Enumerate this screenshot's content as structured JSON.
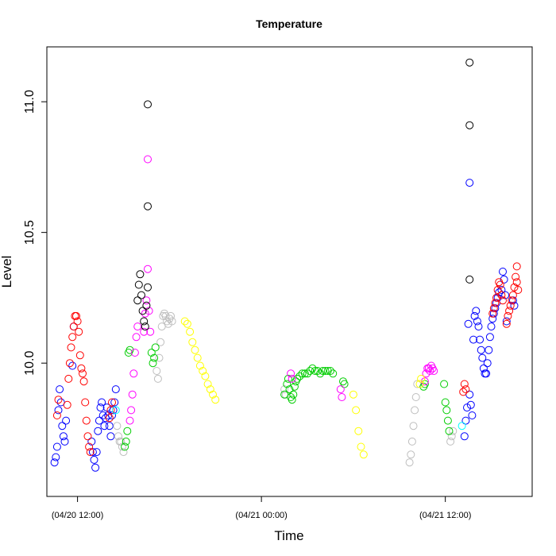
{
  "chart_data": {
    "type": "scatter",
    "title": "Temperature",
    "xlabel": "Time",
    "ylabel": "Level",
    "xlim": [
      "04/20 10:00",
      "04/21 17:40"
    ],
    "ylim": [
      9.49,
      11.21
    ],
    "x_ticks": [
      {
        "value": "04/20 12:00",
        "label": "(04/20 12:00)"
      },
      {
        "value": "04/21 00:00",
        "label": "(04/21 00:00)"
      },
      {
        "value": "04/21 12:00",
        "label": "(04/21 12:00)"
      }
    ],
    "y_ticks": [
      {
        "value": 10.0,
        "label": "10.0"
      },
      {
        "value": 10.5,
        "label": "10.5"
      },
      {
        "value": 11.0,
        "label": "11.0"
      }
    ],
    "grid": false,
    "legend": "none",
    "series": [
      {
        "color": "#0000FF",
        "points": [
          [
            "04/20 10:30",
            9.62
          ],
          [
            "04/20 10:35",
            9.64
          ],
          [
            "04/20 10:40",
            9.68
          ],
          [
            "04/20 10:45",
            9.82
          ],
          [
            "04/20 10:50",
            9.9
          ],
          [
            "04/20 10:55",
            9.85
          ],
          [
            "04/20 11:00",
            9.76
          ],
          [
            "04/20 11:05",
            9.72
          ],
          [
            "04/20 11:10",
            9.7
          ],
          [
            "04/20 11:15",
            9.78
          ],
          [
            "04/20 11:40",
            9.99
          ],
          [
            "04/20 11:45",
            10.14
          ],
          [
            "04/20 12:55",
            9.7
          ],
          [
            "04/20 13:00",
            9.66
          ],
          [
            "04/20 13:05",
            9.63
          ],
          [
            "04/20 13:10",
            9.6
          ],
          [
            "04/20 13:15",
            9.66
          ],
          [
            "04/20 13:20",
            9.74
          ],
          [
            "04/20 13:25",
            9.78
          ],
          [
            "04/20 13:30",
            9.83
          ],
          [
            "04/20 13:35",
            9.85
          ],
          [
            "04/20 13:40",
            9.8
          ],
          [
            "04/20 13:45",
            9.76
          ],
          [
            "04/20 13:50",
            9.79
          ],
          [
            "04/20 13:55",
            9.83
          ],
          [
            "04/20 14:00",
            9.8
          ],
          [
            "04/20 14:05",
            9.76
          ],
          [
            "04/20 14:10",
            9.72
          ],
          [
            "04/20 14:15",
            9.8
          ],
          [
            "04/20 14:20",
            9.82
          ],
          [
            "04/20 14:25",
            9.85
          ],
          [
            "04/20 14:30",
            9.9
          ],
          [
            "04/21 13:15",
            9.72
          ],
          [
            "04/21 13:20",
            9.78
          ],
          [
            "04/21 13:25",
            9.83
          ],
          [
            "04/21 13:30",
            10.15
          ],
          [
            "04/21 13:35",
            10.69
          ],
          [
            "04/21 13:35",
            9.88
          ],
          [
            "04/21 13:40",
            9.84
          ],
          [
            "04/21 13:45",
            9.8
          ],
          [
            "04/21 13:50",
            10.09
          ],
          [
            "04/21 13:55",
            10.18
          ],
          [
            "04/21 14:00",
            10.2
          ],
          [
            "04/21 14:05",
            10.16
          ],
          [
            "04/21 14:10",
            10.14
          ],
          [
            "04/21 14:15",
            10.09
          ],
          [
            "04/21 14:20",
            10.05
          ],
          [
            "04/21 14:25",
            10.02
          ],
          [
            "04/21 14:30",
            9.98
          ],
          [
            "04/21 14:35",
            9.96
          ],
          [
            "04/21 14:40",
            9.96
          ],
          [
            "04/21 14:45",
            10.0
          ],
          [
            "04/21 14:50",
            10.05
          ],
          [
            "04/21 14:55",
            10.1
          ],
          [
            "04/21 15:00",
            10.14
          ],
          [
            "04/21 15:05",
            10.17
          ],
          [
            "04/21 15:10",
            10.19
          ],
          [
            "04/21 15:15",
            10.21
          ],
          [
            "04/21 15:20",
            10.23
          ],
          [
            "04/21 15:25",
            10.25
          ],
          [
            "04/21 15:30",
            10.27
          ],
          [
            "04/21 15:40",
            10.28
          ],
          [
            "04/21 15:45",
            10.35
          ],
          [
            "04/21 15:50",
            10.32
          ],
          [
            "04/21 15:55",
            10.26
          ],
          [
            "04/21 16:00",
            10.16
          ],
          [
            "04/21 16:25",
            10.24
          ],
          [
            "04/21 16:30",
            10.22
          ]
        ]
      },
      {
        "color": "#FF0000",
        "points": [
          [
            "04/20 10:40",
            9.8
          ],
          [
            "04/20 10:45",
            9.86
          ],
          [
            "04/20 11:20",
            9.84
          ],
          [
            "04/20 11:25",
            9.94
          ],
          [
            "04/20 11:30",
            10.0
          ],
          [
            "04/20 11:35",
            10.06
          ],
          [
            "04/20 11:40",
            10.1
          ],
          [
            "04/20 11:45",
            10.14
          ],
          [
            "04/20 11:50",
            10.18
          ],
          [
            "04/20 11:55",
            10.18
          ],
          [
            "04/20 12:00",
            10.16
          ],
          [
            "04/20 12:05",
            10.12
          ],
          [
            "04/20 12:10",
            10.03
          ],
          [
            "04/20 12:15",
            9.98
          ],
          [
            "04/20 12:20",
            9.96
          ],
          [
            "04/20 12:25",
            9.93
          ],
          [
            "04/20 12:30",
            9.85
          ],
          [
            "04/20 12:35",
            9.78
          ],
          [
            "04/20 12:40",
            9.72
          ],
          [
            "04/20 12:45",
            9.68
          ],
          [
            "04/20 12:50",
            9.66
          ],
          [
            "04/20 14:05",
            9.79
          ],
          [
            "04/20 14:10",
            9.82
          ],
          [
            "04/20 14:15",
            9.85
          ],
          [
            "04/21 13:10",
            9.89
          ],
          [
            "04/21 13:15",
            9.92
          ],
          [
            "04/21 13:20",
            9.9
          ],
          [
            "04/21 15:05",
            10.19
          ],
          [
            "04/21 15:10",
            10.21
          ],
          [
            "04/21 15:15",
            10.23
          ],
          [
            "04/21 15:20",
            10.25
          ],
          [
            "04/21 15:25",
            10.28
          ],
          [
            "04/21 15:30",
            10.31
          ],
          [
            "04/21 15:35",
            10.3
          ],
          [
            "04/21 15:40",
            10.26
          ],
          [
            "04/21 15:45",
            10.24
          ],
          [
            "04/21 16:00",
            10.15
          ],
          [
            "04/21 16:05",
            10.18
          ],
          [
            "04/21 16:10",
            10.2
          ],
          [
            "04/21 16:15",
            10.22
          ],
          [
            "04/21 16:20",
            10.24
          ],
          [
            "04/21 16:25",
            10.26
          ],
          [
            "04/21 16:30",
            10.29
          ],
          [
            "04/21 16:35",
            10.33
          ],
          [
            "04/21 16:40",
            10.37
          ],
          [
            "04/21 16:40",
            10.31
          ],
          [
            "04/21 16:45",
            10.28
          ]
        ]
      },
      {
        "color": "#BEBEBE",
        "points": [
          [
            "04/20 14:35",
            9.76
          ],
          [
            "04/20 14:40",
            9.72
          ],
          [
            "04/20 14:45",
            9.7
          ],
          [
            "04/20 14:50",
            9.7
          ],
          [
            "04/20 14:55",
            9.68
          ],
          [
            "04/20 15:00",
            9.66
          ],
          [
            "04/20 17:10",
            9.97
          ],
          [
            "04/20 17:15",
            9.94
          ],
          [
            "04/20 17:20",
            10.02
          ],
          [
            "04/20 17:25",
            10.08
          ],
          [
            "04/20 17:30",
            10.14
          ],
          [
            "04/20 17:35",
            10.18
          ],
          [
            "04/20 17:40",
            10.19
          ],
          [
            "04/20 17:45",
            10.18
          ],
          [
            "04/20 17:50",
            10.16
          ],
          [
            "04/20 17:55",
            10.15
          ],
          [
            "04/20 18:00",
            10.17
          ],
          [
            "04/20 18:05",
            10.18
          ],
          [
            "04/20 18:10",
            10.16
          ],
          [
            "04/21 01:30",
            9.9
          ],
          [
            "04/21 01:35",
            9.88
          ],
          [
            "04/21 09:40",
            9.62
          ],
          [
            "04/21 09:45",
            9.65
          ],
          [
            "04/21 09:50",
            9.7
          ],
          [
            "04/21 09:55",
            9.76
          ],
          [
            "04/21 10:00",
            9.82
          ],
          [
            "04/21 10:05",
            9.87
          ],
          [
            "04/21 10:10",
            9.92
          ],
          [
            "04/21 12:20",
            9.7
          ],
          [
            "04/21 12:25",
            9.72
          ],
          [
            "04/21 12:30",
            9.74
          ]
        ]
      },
      {
        "color": "#00CD00",
        "points": [
          [
            "04/20 15:05",
            9.68
          ],
          [
            "04/20 15:10",
            9.7
          ],
          [
            "04/20 15:15",
            9.74
          ],
          [
            "04/20 15:20",
            10.04
          ],
          [
            "04/20 15:25",
            10.05
          ],
          [
            "04/20 16:50",
            10.04
          ],
          [
            "04/20 16:55",
            10.0
          ],
          [
            "04/20 17:00",
            10.02
          ],
          [
            "04/20 17:05",
            10.06
          ],
          [
            "04/21 01:30",
            9.88
          ],
          [
            "04/21 01:40",
            9.92
          ],
          [
            "04/21 01:45",
            9.94
          ],
          [
            "04/21 01:50",
            9.9
          ],
          [
            "04/21 01:55",
            9.87
          ],
          [
            "04/21 02:00",
            9.86
          ],
          [
            "04/21 02:05",
            9.88
          ],
          [
            "04/21 02:10",
            9.91
          ],
          [
            "04/21 02:15",
            9.93
          ],
          [
            "04/21 02:20",
            9.94
          ],
          [
            "04/21 02:30",
            9.95
          ],
          [
            "04/21 02:40",
            9.96
          ],
          [
            "04/21 02:50",
            9.96
          ],
          [
            "04/21 03:00",
            9.96
          ],
          [
            "04/21 03:10",
            9.97
          ],
          [
            "04/21 03:20",
            9.98
          ],
          [
            "04/21 03:30",
            9.97
          ],
          [
            "04/21 03:40",
            9.97
          ],
          [
            "04/21 03:50",
            9.96
          ],
          [
            "04/21 04:00",
            9.97
          ],
          [
            "04/21 04:10",
            9.97
          ],
          [
            "04/21 04:20",
            9.97
          ],
          [
            "04/21 04:30",
            9.97
          ],
          [
            "04/21 04:40",
            9.96
          ],
          [
            "04/21 05:20",
            9.93
          ],
          [
            "04/21 05:25",
            9.92
          ],
          [
            "04/21 10:35",
            9.91
          ],
          [
            "04/21 10:40",
            9.92
          ],
          [
            "04/21 11:55",
            9.92
          ],
          [
            "04/21 12:00",
            9.85
          ],
          [
            "04/21 12:05",
            9.82
          ],
          [
            "04/21 12:10",
            9.78
          ],
          [
            "04/21 12:15",
            9.74
          ]
        ]
      },
      {
        "color": "#FF00FF",
        "points": [
          [
            "04/20 15:25",
            9.78
          ],
          [
            "04/20 15:30",
            9.82
          ],
          [
            "04/20 15:35",
            9.88
          ],
          [
            "04/20 15:40",
            9.96
          ],
          [
            "04/20 15:45",
            10.04
          ],
          [
            "04/20 15:50",
            10.1
          ],
          [
            "04/20 15:55",
            10.14
          ],
          [
            "04/20 16:20",
            10.12
          ],
          [
            "04/20 16:25",
            10.19
          ],
          [
            "04/20 16:30",
            10.24
          ],
          [
            "04/20 16:35",
            10.78
          ],
          [
            "04/20 16:35",
            10.36
          ],
          [
            "04/20 16:40",
            10.2
          ],
          [
            "04/20 16:45",
            10.12
          ],
          [
            "04/21 01:55",
            9.96
          ],
          [
            "04/21 02:00",
            9.94
          ],
          [
            "04/21 05:10",
            9.9
          ],
          [
            "04/21 05:15",
            9.87
          ],
          [
            "04/21 10:40",
            9.93
          ],
          [
            "04/21 10:45",
            9.96
          ],
          [
            "04/21 10:50",
            9.98
          ],
          [
            "04/21 10:55",
            9.98
          ],
          [
            "04/21 11:00",
            9.97
          ],
          [
            "04/21 11:05",
            9.99
          ],
          [
            "04/21 11:10",
            9.98
          ],
          [
            "04/21 11:15",
            9.97
          ]
        ]
      },
      {
        "color": "#000000",
        "points": [
          [
            "04/20 15:55",
            10.24
          ],
          [
            "04/20 16:00",
            10.3
          ],
          [
            "04/20 16:05",
            10.34
          ],
          [
            "04/20 16:10",
            10.26
          ],
          [
            "04/20 16:15",
            10.2
          ],
          [
            "04/20 16:20",
            10.16
          ],
          [
            "04/20 16:25",
            10.14
          ],
          [
            "04/20 16:30",
            10.22
          ],
          [
            "04/20 16:35",
            10.99
          ],
          [
            "04/20 16:35",
            10.6
          ],
          [
            "04/20 16:35",
            10.29
          ],
          [
            "04/21 13:35",
            11.15
          ],
          [
            "04/21 13:35",
            10.91
          ],
          [
            "04/21 13:35",
            10.32
          ]
        ]
      },
      {
        "color": "#FFFF00",
        "points": [
          [
            "04/20 19:00",
            10.16
          ],
          [
            "04/20 19:10",
            10.15
          ],
          [
            "04/20 19:20",
            10.12
          ],
          [
            "04/20 19:30",
            10.08
          ],
          [
            "04/20 19:40",
            10.05
          ],
          [
            "04/20 19:50",
            10.02
          ],
          [
            "04/20 20:00",
            9.99
          ],
          [
            "04/20 20:10",
            9.97
          ],
          [
            "04/20 20:20",
            9.95
          ],
          [
            "04/20 20:30",
            9.92
          ],
          [
            "04/20 20:40",
            9.9
          ],
          [
            "04/20 20:50",
            9.88
          ],
          [
            "04/20 21:00",
            9.86
          ],
          [
            "04/21 06:00",
            9.88
          ],
          [
            "04/21 06:10",
            9.82
          ],
          [
            "04/21 06:20",
            9.74
          ],
          [
            "04/21 06:30",
            9.68
          ],
          [
            "04/21 06:40",
            9.65
          ],
          [
            "04/21 10:20",
            9.92
          ],
          [
            "04/21 10:25",
            9.94
          ]
        ]
      },
      {
        "color": "#00FFFF",
        "points": [
          [
            "04/20 14:30",
            9.82
          ],
          [
            "04/21 13:05",
            9.76
          ]
        ]
      }
    ]
  }
}
